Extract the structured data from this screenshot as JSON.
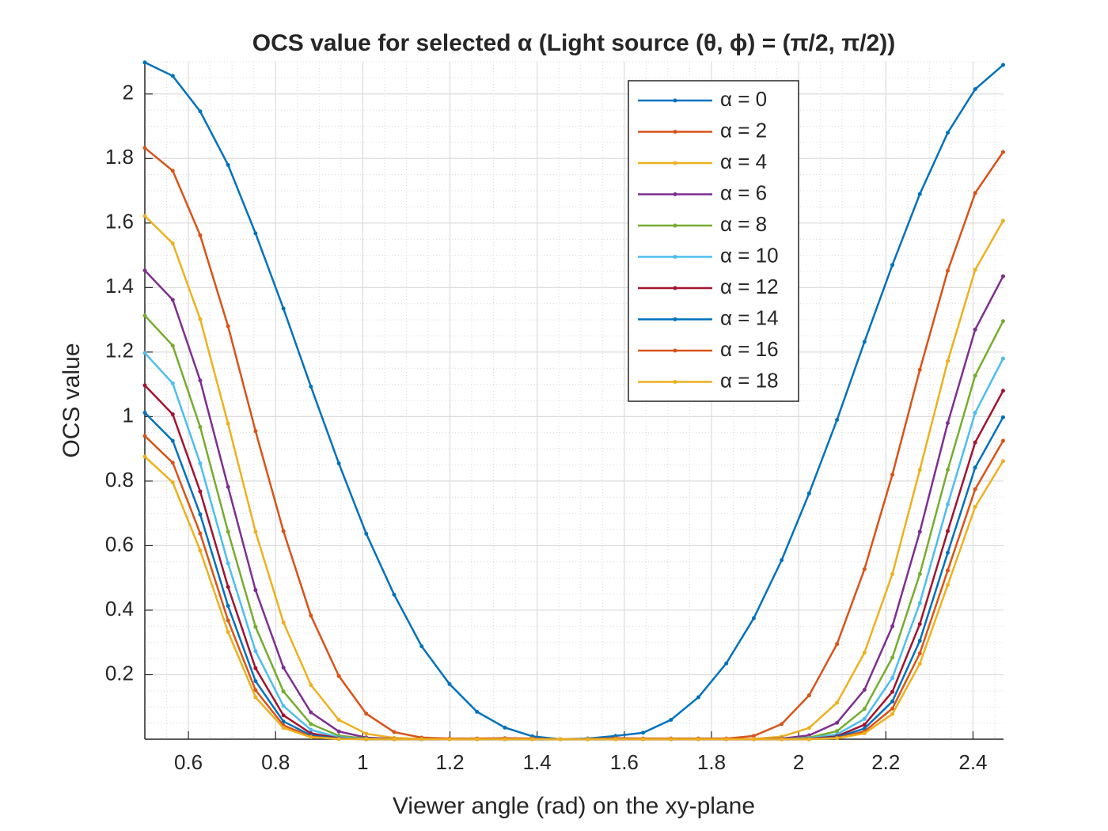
{
  "chart_data": {
    "type": "line",
    "title": "OCS value for selected α (Light source (θ, ϕ) = (π/2, π/2))",
    "x_label": "Viewer angle (rad) on the xy-plane",
    "y_label": "OCS value",
    "x": [
      0.5,
      0.564,
      0.627,
      0.691,
      0.754,
      0.818,
      0.881,
      0.945,
      1.008,
      1.072,
      1.135,
      1.199,
      1.262,
      1.326,
      1.389,
      1.453,
      1.516,
      1.58,
      1.643,
      1.707,
      1.77,
      1.834,
      1.897,
      1.961,
      2.024,
      2.088,
      2.151,
      2.215,
      2.278,
      2.342,
      2.405,
      2.469
    ],
    "series": [
      {
        "name": "α = 0",
        "color": "#0072BD",
        "values": [
          2.098,
          2.056,
          1.946,
          1.78,
          1.568,
          1.335,
          1.093,
          0.855,
          0.637,
          0.448,
          0.288,
          0.171,
          0.085,
          0.036,
          0.009,
          0,
          0.002,
          0.01,
          0.02,
          0.06,
          0.13,
          0.235,
          0.375,
          0.555,
          0.762,
          0.99,
          1.232,
          1.47,
          1.69,
          1.88,
          2.015,
          2.09
        ]
      },
      {
        "name": "α = 2",
        "color": "#D95319",
        "values": [
          1.833,
          1.762,
          1.562,
          1.28,
          0.955,
          0.645,
          0.383,
          0.196,
          0.079,
          0.022,
          0.005,
          0.002,
          0.002,
          0.003,
          0.002,
          0,
          0.001,
          0.003,
          0.002,
          0.002,
          0.002,
          0.002,
          0.01,
          0.047,
          0.136,
          0.295,
          0.527,
          0.82,
          1.145,
          1.452,
          1.693,
          1.82
        ]
      },
      {
        "name": "α = 4",
        "color": "#EDB120",
        "values": [
          1.622,
          1.537,
          1.302,
          0.978,
          0.643,
          0.362,
          0.168,
          0.06,
          0.017,
          0.004,
          0.001,
          0,
          0,
          0,
          0,
          0,
          0,
          0,
          0,
          0,
          0,
          0,
          0.001,
          0.008,
          0.035,
          0.113,
          0.268,
          0.512,
          0.835,
          1.172,
          1.455,
          1.607
        ]
      },
      {
        "name": "α = 6",
        "color": "#7E2F8E",
        "values": [
          1.453,
          1.362,
          1.112,
          0.782,
          0.462,
          0.222,
          0.083,
          0.024,
          0.005,
          0.001,
          0,
          0,
          0,
          0,
          0,
          0,
          0,
          0,
          0,
          0,
          0,
          0,
          0,
          0.002,
          0.012,
          0.051,
          0.153,
          0.35,
          0.643,
          0.98,
          1.27,
          1.435
        ]
      },
      {
        "name": "α = 8",
        "color": "#77AC30",
        "values": [
          1.313,
          1.22,
          0.968,
          0.643,
          0.348,
          0.148,
          0.047,
          0.011,
          0.002,
          0,
          0,
          0,
          0,
          0,
          0,
          0,
          0,
          0,
          0,
          0,
          0,
          0,
          0,
          0,
          0.005,
          0.025,
          0.094,
          0.253,
          0.512,
          0.835,
          1.127,
          1.296
        ]
      },
      {
        "name": "α = 10",
        "color": "#4DBEEE",
        "values": [
          1.197,
          1.103,
          0.855,
          0.545,
          0.273,
          0.103,
          0.029,
          0.006,
          0.001,
          0,
          0,
          0,
          0,
          0,
          0,
          0,
          0,
          0,
          0,
          0,
          0,
          0,
          0,
          0,
          0.003,
          0.015,
          0.063,
          0.19,
          0.422,
          0.728,
          1.012,
          1.18
        ]
      },
      {
        "name": "α = 12",
        "color": "#A2142F",
        "values": [
          1.097,
          1.007,
          0.768,
          0.472,
          0.22,
          0.074,
          0.018,
          0.003,
          0,
          0,
          0,
          0,
          0,
          0,
          0,
          0,
          0,
          0,
          0,
          0,
          0,
          0,
          0,
          0,
          0.001,
          0.009,
          0.045,
          0.147,
          0.357,
          0.645,
          0.92,
          1.08
        ]
      },
      {
        "name": "α = 14",
        "color": "#0072BD",
        "values": [
          1.012,
          0.925,
          0.697,
          0.413,
          0.18,
          0.055,
          0.012,
          0.002,
          0,
          0,
          0,
          0,
          0,
          0,
          0,
          0,
          0,
          0,
          0,
          0,
          0,
          0,
          0,
          0,
          0,
          0.006,
          0.033,
          0.117,
          0.305,
          0.578,
          0.842,
          0.998
        ]
      },
      {
        "name": "α = 16",
        "color": "#D95319",
        "values": [
          0.94,
          0.857,
          0.638,
          0.368,
          0.152,
          0.043,
          0.008,
          0.001,
          0,
          0,
          0,
          0,
          0,
          0,
          0,
          0,
          0,
          0,
          0,
          0,
          0,
          0,
          0,
          0,
          0,
          0.004,
          0.024,
          0.095,
          0.266,
          0.523,
          0.775,
          0.925
        ]
      },
      {
        "name": "α = 18",
        "color": "#EDB120",
        "values": [
          0.876,
          0.796,
          0.585,
          0.332,
          0.13,
          0.035,
          0.006,
          0.001,
          0,
          0,
          0,
          0,
          0,
          0,
          0,
          0,
          0,
          0,
          0,
          0,
          0,
          0,
          0,
          0,
          0,
          0.003,
          0.018,
          0.078,
          0.234,
          0.478,
          0.72,
          0.862
        ]
      }
    ],
    "xlim": [
      0.5,
      2.47
    ],
    "ylim": [
      0,
      2.1
    ],
    "xticks": [
      0.6,
      0.8,
      1,
      1.2,
      1.4,
      1.6,
      1.8,
      2,
      2.2,
      2.4
    ],
    "yticks": [
      0.2,
      0.4,
      0.6,
      0.8,
      1,
      1.2,
      1.4,
      1.6,
      1.8,
      2
    ],
    "grid": true,
    "minor_grid": true,
    "legend": "northeast"
  }
}
